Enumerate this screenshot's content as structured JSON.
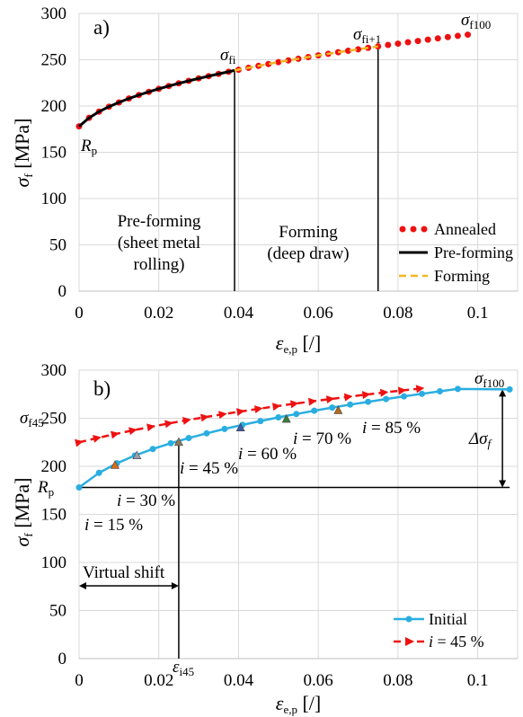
{
  "chart_data": [
    {
      "type": "scatter",
      "panel_label": "a)",
      "xlabel": {
        "sym": "ε",
        "sub": "e,p",
        "unit": " [/]"
      },
      "ylabel": {
        "sym": "σ",
        "sub": "f",
        "unit": " [MPa]"
      },
      "xlim": [
        0,
        0.11
      ],
      "ylim": [
        0,
        300
      ],
      "xticks": [
        {
          "v": 0,
          "label": "0"
        },
        {
          "v": 0.02,
          "label": "0.02"
        },
        {
          "v": 0.04,
          "label": "0.04"
        },
        {
          "v": 0.06,
          "label": "0.06"
        },
        {
          "v": 0.08,
          "label": "0.08"
        },
        {
          "v": 0.1,
          "label": "0.1"
        }
      ],
      "yticks": [
        {
          "v": 0,
          "label": "0"
        },
        {
          "v": 50,
          "label": "50"
        },
        {
          "v": 100,
          "label": "100"
        },
        {
          "v": 150,
          "label": "150"
        },
        {
          "v": 200,
          "label": "200"
        },
        {
          "v": 250,
          "label": "250"
        },
        {
          "v": 300,
          "label": "300"
        }
      ],
      "series": [
        {
          "name": "Annealed",
          "style": "dots",
          "color": "#ee1111",
          "x": [
            0,
            0.0025,
            0.005,
            0.0075,
            0.01,
            0.0125,
            0.015,
            0.0175,
            0.02,
            0.0225,
            0.025,
            0.0275,
            0.03,
            0.0325,
            0.035,
            0.0375,
            0.04,
            0.0425,
            0.045,
            0.0475,
            0.05,
            0.0525,
            0.055,
            0.0575,
            0.06,
            0.0625,
            0.065,
            0.0675,
            0.07,
            0.0725,
            0.075,
            0.0775,
            0.08,
            0.0825,
            0.085,
            0.0875,
            0.09,
            0.0925,
            0.095,
            0.0975
          ],
          "y": [
            178,
            187.2,
            193.9,
            199.3,
            203.9,
            208.1,
            211.9,
            215.3,
            218.6,
            221.6,
            224.5,
            227.2,
            229.8,
            232.3,
            234.7,
            237,
            239.2,
            241.3,
            243.4,
            245.4,
            247.4,
            249.3,
            251.1,
            252.9,
            254.7,
            256.4,
            258.1,
            259.7,
            261.3,
            262.9,
            264.4,
            266,
            267.4,
            268.9,
            270.3,
            271.7,
            273.1,
            274.5,
            275.8,
            277.1
          ]
        },
        {
          "name": "Pre-forming",
          "style": "line",
          "color": "#000000",
          "x": [
            0,
            0.0025,
            0.005,
            0.0075,
            0.01,
            0.0125,
            0.015,
            0.0175,
            0.02,
            0.0225,
            0.025,
            0.0275,
            0.03,
            0.0325,
            0.035,
            0.0375,
            0.039
          ],
          "y": [
            178,
            187.2,
            193.9,
            199.3,
            203.9,
            208.1,
            211.9,
            215.3,
            218.6,
            221.6,
            224.5,
            227.2,
            229.8,
            232.3,
            234.7,
            237,
            238.5
          ]
        },
        {
          "name": "Forming",
          "style": "dash",
          "color": "#f2b820",
          "x": [
            0.039,
            0.0425,
            0.045,
            0.0475,
            0.05,
            0.0525,
            0.055,
            0.0575,
            0.06,
            0.0625,
            0.065,
            0.0675,
            0.07,
            0.0725,
            0.075
          ],
          "y": [
            238.5,
            241.3,
            243.4,
            245.4,
            247.4,
            249.3,
            251.1,
            252.9,
            254.7,
            256.4,
            258.1,
            259.7,
            261.3,
            262.9,
            264.4
          ]
        }
      ],
      "vlines": [
        {
          "x": 0.039,
          "y": 238.5
        },
        {
          "x": 0.075,
          "y": 264.4
        }
      ],
      "annotations": {
        "sigma_fi": {
          "sym": "σ",
          "sub": "fi"
        },
        "sigma_fi1": {
          "sym": "σ",
          "sub": "fi+1"
        },
        "sigma_f100": {
          "sym": "σ",
          "sub": "f100"
        },
        "rp": {
          "sym": "R",
          "sub": "p"
        },
        "preforming": [
          "Pre-forming",
          "(sheet metal",
          "rolling)"
        ],
        "forming": [
          "Forming",
          "(deep draw)"
        ]
      },
      "legend_position": "bottom-right"
    },
    {
      "type": "line",
      "panel_label": "b)",
      "xlabel": {
        "sym": "ε",
        "sub": "e,p",
        "unit": " [/]"
      },
      "ylabel": {
        "sym": "σ",
        "sub": "f",
        "unit": " [MPa]"
      },
      "xlim": [
        0,
        0.11
      ],
      "ylim": [
        0,
        300
      ],
      "xticks": [
        {
          "v": 0,
          "label": "0"
        },
        {
          "v": 0.02,
          "label": "0.02"
        },
        {
          "v": 0.04,
          "label": "0.04"
        },
        {
          "v": 0.06,
          "label": "0.06"
        },
        {
          "v": 0.08,
          "label": "0.08"
        },
        {
          "v": 0.1,
          "label": "0.1"
        }
      ],
      "yticks": [
        {
          "v": 0,
          "label": "0"
        },
        {
          "v": 50,
          "label": "50"
        },
        {
          "v": 100,
          "label": "100"
        },
        {
          "v": 150,
          "label": "150"
        },
        {
          "v": 200,
          "label": "200"
        },
        {
          "v": 250,
          "label": "250"
        },
        {
          "v": 300,
          "label": "300"
        }
      ],
      "series": [
        {
          "name": "Initial",
          "style": "line-dots",
          "color": "#2aaee0",
          "x": [
            0,
            0.005,
            0.0095,
            0.014,
            0.0185,
            0.023,
            0.0275,
            0.032,
            0.0365,
            0.041,
            0.0455,
            0.05,
            0.0545,
            0.059,
            0.0635,
            0.068,
            0.0725,
            0.077,
            0.0815,
            0.086,
            0.0905,
            0.095,
            0.108
          ],
          "y": [
            178,
            193.2,
            203.2,
            211.2,
            218,
            224,
            229.4,
            234.3,
            238.9,
            243.1,
            247.1,
            250.9,
            254.4,
            257.8,
            261.1,
            264.2,
            267.1,
            270,
            272.8,
            275.4,
            278,
            280.5,
            280
          ]
        },
        {
          "name": "= 45 %",
          "name_prefix": "i",
          "style": "dash-arrow",
          "color": "#ee1111",
          "x": [
            0,
            0.0045,
            0.009,
            0.0135,
            0.018,
            0.0225,
            0.027,
            0.0315,
            0.036,
            0.0405,
            0.045,
            0.0495,
            0.054,
            0.0585,
            0.063,
            0.0675,
            0.072,
            0.0765,
            0.081,
            0.0855
          ],
          "y": [
            225,
            229.4,
            233.5,
            237.4,
            241.1,
            244.6,
            247.9,
            251.1,
            254.1,
            257,
            259.8,
            262.5,
            265.1,
            267.6,
            270,
            272.3,
            274.6,
            276.8,
            278.9,
            280.9
          ]
        }
      ],
      "markers": [
        {
          "x": 0.009,
          "y": 201,
          "color": "#e06a10",
          "label": "i = 15 %"
        },
        {
          "x": 0.0145,
          "y": 211,
          "color": "#9aa0b0",
          "label": "i = 30 %"
        },
        {
          "x": 0.025,
          "y": 225,
          "color": "#8a7a60",
          "label": "i = 45 %"
        },
        {
          "x": 0.0405,
          "y": 240,
          "color": "#3d5aa8",
          "label": "i = 60 %"
        },
        {
          "x": 0.052,
          "y": 249,
          "color": "#3a7d3a",
          "label": "i = 70 %"
        },
        {
          "x": 0.065,
          "y": 258,
          "color": "#b46a1c",
          "label": "i = 85 %"
        }
      ],
      "marker_label_parts": {
        "i15": [
          "i",
          " = 15 %"
        ],
        "i30": [
          "i",
          " = 30 %"
        ],
        "i45": [
          "i",
          " = 45 %"
        ],
        "i60": [
          "i",
          " = 60 %"
        ],
        "i70": [
          "i",
          " = 70 %"
        ],
        "i85": [
          "i",
          " = 85 %"
        ]
      },
      "annotations": {
        "sigma_f100": {
          "sym": "σ",
          "sub": "f100"
        },
        "sigma_f45": {
          "sym": "σ",
          "sub": "f45"
        },
        "rp": {
          "sym": "R",
          "sub": "p"
        },
        "delta_sigma": {
          "sym": "Δσ",
          "sub": "f"
        },
        "eps_i45": {
          "sym": "ε",
          "sub": "i45"
        },
        "virtual_shift": "Virtual shift"
      },
      "legend_position": "bottom-right"
    }
  ]
}
